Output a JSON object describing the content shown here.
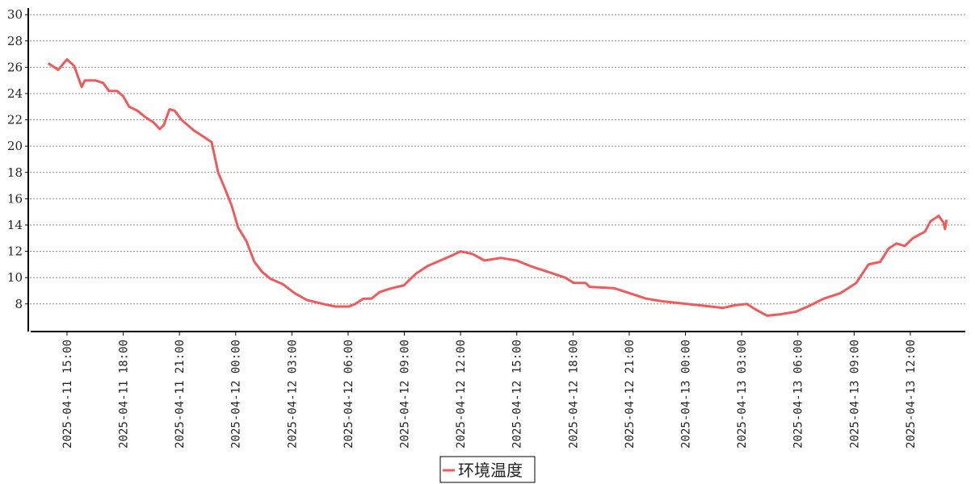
{
  "chart_data": {
    "type": "line",
    "title": "",
    "xlabel": "",
    "ylabel": "",
    "xlim": [
      "2025-04-11 12:56",
      "2025-04-13 14:56"
    ],
    "ylim": [
      5.9,
      30.5
    ],
    "grid": true,
    "legend_position": "bottom-center",
    "yticks": [
      8,
      10,
      12,
      14,
      16,
      18,
      20,
      22,
      24,
      26,
      28,
      30
    ],
    "xticks": [
      "2025-04-11 15:00",
      "2025-04-11 18:00",
      "2025-04-11 21:00",
      "2025-04-12 00:00",
      "2025-04-12 03:00",
      "2025-04-12 06:00",
      "2025-04-12 09:00",
      "2025-04-12 12:00",
      "2025-04-12 15:00",
      "2025-04-12 18:00",
      "2025-04-12 21:00",
      "2025-04-13 00:00",
      "2025-04-13 03:00",
      "2025-04-13 06:00",
      "2025-04-13 09:00",
      "2025-04-13 12:00"
    ],
    "series": [
      {
        "name": "环境温度",
        "color": "#f05a5a",
        "points": [
          [
            "2025-04-11 14:00",
            26.3
          ],
          [
            "2025-04-11 14:13",
            26.1
          ],
          [
            "2025-04-11 14:32",
            25.8
          ],
          [
            "2025-04-11 15:00",
            26.6
          ],
          [
            "2025-04-11 15:23",
            26.1
          ],
          [
            "2025-04-11 15:47",
            24.5
          ],
          [
            "2025-04-11 15:57",
            25.0
          ],
          [
            "2025-04-11 16:31",
            25.0
          ],
          [
            "2025-04-11 16:56",
            24.8
          ],
          [
            "2025-04-11 17:14",
            24.2
          ],
          [
            "2025-04-11 17:40",
            24.2
          ],
          [
            "2025-04-11 18:00",
            23.8
          ],
          [
            "2025-04-11 18:19",
            23.0
          ],
          [
            "2025-04-11 18:45",
            22.7
          ],
          [
            "2025-04-11 19:11",
            22.2
          ],
          [
            "2025-04-11 19:37",
            21.8
          ],
          [
            "2025-04-11 19:57",
            21.3
          ],
          [
            "2025-04-11 20:10",
            21.6
          ],
          [
            "2025-04-11 20:28",
            22.8
          ],
          [
            "2025-04-11 20:44",
            22.7
          ],
          [
            "2025-04-11 21:07",
            22.0
          ],
          [
            "2025-04-11 21:46",
            21.2
          ],
          [
            "2025-04-11 22:12",
            20.8
          ],
          [
            "2025-04-11 22:43",
            20.3
          ],
          [
            "2025-04-11 23:04",
            18.0
          ],
          [
            "2025-04-11 23:25",
            16.8
          ],
          [
            "2025-04-11 23:47",
            15.5
          ],
          [
            "2025-04-12 00:08",
            13.8
          ],
          [
            "2025-04-12 00:34",
            12.8
          ],
          [
            "2025-04-12 01:00",
            11.2
          ],
          [
            "2025-04-12 01:26",
            10.4
          ],
          [
            "2025-04-12 01:52",
            9.9
          ],
          [
            "2025-04-12 02:31",
            9.5
          ],
          [
            "2025-04-12 03:10",
            8.8
          ],
          [
            "2025-04-12 03:48",
            8.3
          ],
          [
            "2025-04-12 04:40",
            8.0
          ],
          [
            "2025-04-12 05:19",
            7.8
          ],
          [
            "2025-04-12 06:02",
            7.8
          ],
          [
            "2025-04-12 06:23",
            8.0
          ],
          [
            "2025-04-12 06:49",
            8.4
          ],
          [
            "2025-04-12 07:15",
            8.4
          ],
          [
            "2025-04-12 07:41",
            8.9
          ],
          [
            "2025-04-12 08:20",
            9.2
          ],
          [
            "2025-04-12 08:58",
            9.4
          ],
          [
            "2025-04-12 09:37",
            10.3
          ],
          [
            "2025-04-12 10:16",
            10.9
          ],
          [
            "2025-04-12 10:55",
            11.3
          ],
          [
            "2025-04-12 11:34",
            11.7
          ],
          [
            "2025-04-12 12:00",
            12.0
          ],
          [
            "2025-04-12 12:38",
            11.8
          ],
          [
            "2025-04-12 13:17",
            11.3
          ],
          [
            "2025-04-12 14:09",
            11.5
          ],
          [
            "2025-04-12 15:00",
            11.3
          ],
          [
            "2025-04-12 15:52",
            10.8
          ],
          [
            "2025-04-12 16:44",
            10.4
          ],
          [
            "2025-04-12 17:35",
            10.0
          ],
          [
            "2025-04-12 18:02",
            9.6
          ],
          [
            "2025-04-12 18:40",
            9.6
          ],
          [
            "2025-04-12 18:53",
            9.3
          ],
          [
            "2025-04-12 20:11",
            9.2
          ],
          [
            "2025-04-12 21:03",
            8.8
          ],
          [
            "2025-04-12 21:54",
            8.4
          ],
          [
            "2025-04-12 22:46",
            8.2
          ],
          [
            "2025-04-13 00:04",
            8.0
          ],
          [
            "2025-04-13 01:21",
            7.8
          ],
          [
            "2025-04-13 02:00",
            7.7
          ],
          [
            "2025-04-13 02:39",
            7.9
          ],
          [
            "2025-04-13 03:17",
            8.0
          ],
          [
            "2025-04-13 03:43",
            7.6
          ],
          [
            "2025-04-13 04:22",
            7.1
          ],
          [
            "2025-04-13 05:01",
            7.2
          ],
          [
            "2025-04-13 05:53",
            7.4
          ],
          [
            "2025-04-13 06:32",
            7.8
          ],
          [
            "2025-04-13 07:23",
            8.4
          ],
          [
            "2025-04-13 08:15",
            8.8
          ],
          [
            "2025-04-13 09:07",
            9.6
          ],
          [
            "2025-04-13 09:46",
            11.0
          ],
          [
            "2025-04-13 10:24",
            11.2
          ],
          [
            "2025-04-13 10:50",
            12.2
          ],
          [
            "2025-04-13 11:16",
            12.6
          ],
          [
            "2025-04-13 11:42",
            12.4
          ],
          [
            "2025-04-13 12:08",
            13.0
          ],
          [
            "2025-04-13 12:47",
            13.5
          ],
          [
            "2025-04-13 13:05",
            14.3
          ],
          [
            "2025-04-13 13:31",
            14.7
          ],
          [
            "2025-04-13 13:46",
            14.2
          ],
          [
            "2025-04-13 13:51",
            13.7
          ],
          [
            "2025-04-13 13:56",
            14.4
          ]
        ]
      }
    ]
  }
}
